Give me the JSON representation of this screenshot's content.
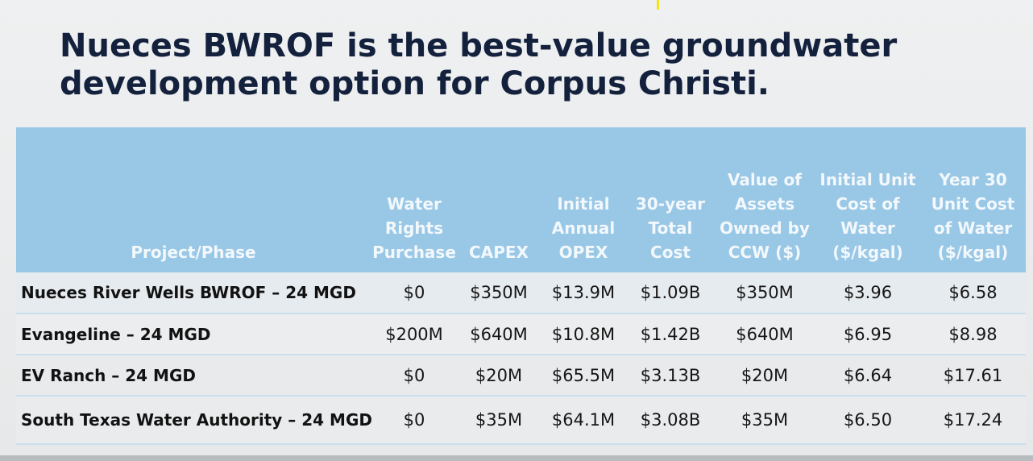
{
  "slide": {
    "title_line1": "Nueces BWROF is the best-value groundwater",
    "title_line2": "development option for Corpus Christi."
  },
  "table": {
    "headers": [
      "Project/Phase",
      "Water\nRights\nPurchase",
      "CAPEX",
      "Initial\nAnnual\nOPEX",
      "30-year\nTotal\nCost",
      "Value of\nAssets\nOwned by\nCCW ($)",
      "Initial Unit\nCost of\nWater\n($/kgal)",
      "Year 30\nUnit Cost\nof Water\n($/kgal)"
    ],
    "rows": [
      [
        "Nueces River Wells BWROF – 24 MGD",
        "$0",
        "$350M",
        "$13.9M",
        "$1.09B",
        "$350M",
        "$3.96",
        "$6.58"
      ],
      [
        "Evangeline – 24 MGD",
        "$200M",
        "$640M",
        "$10.8M",
        "$1.42B",
        "$640M",
        "$6.95",
        "$8.98"
      ],
      [
        "EV Ranch – 24 MGD",
        "$0",
        "$20M",
        "$65.5M",
        "$3.13B",
        "$20M",
        "$6.64",
        "$17.61"
      ],
      [
        "South Texas Water Authority – 24 MGD",
        "$0",
        "$35M",
        "$64.1M",
        "$3.08B",
        "$35M",
        "$6.50",
        "$17.24"
      ]
    ]
  },
  "colors": {
    "title": "#14213d",
    "header_bg": "#99c7e6",
    "header_text": "#f2f8fc",
    "row_divider": "#c9dfee"
  }
}
